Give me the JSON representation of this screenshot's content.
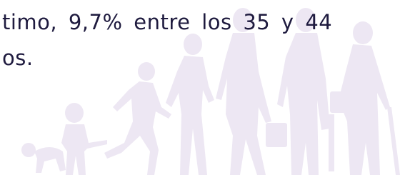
{
  "text": {
    "lines": [
      "timo, 9,7% entre los 35 y 44",
      "os."
    ]
  }
}
